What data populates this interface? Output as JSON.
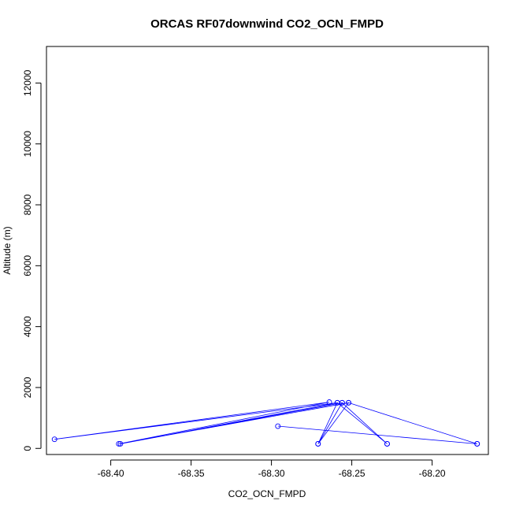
{
  "chart_data": {
    "type": "scatter",
    "title": "ORCAS RF07downwind CO2_OCN_FMPD",
    "xlabel": "CO2_OCN_FMPD",
    "ylabel": "Altitude (m)",
    "xlim": [
      -68.44,
      -68.165
    ],
    "ylim": [
      -200,
      13200
    ],
    "xticks": [
      -68.4,
      -68.35,
      -68.3,
      -68.25,
      -68.2
    ],
    "xtick_labels": [
      "-68.40",
      "-68.35",
      "-68.30",
      "-68.25",
      "-68.20"
    ],
    "yticks": [
      0,
      2000,
      4000,
      6000,
      8000,
      10000,
      12000
    ],
    "ytick_labels": [
      "0",
      "2000",
      "4000",
      "6000",
      "8000",
      "10000",
      "12000"
    ],
    "grid": false,
    "connected": true,
    "series": [
      {
        "color": "#0000ff",
        "points": [
          {
            "x": -68.271,
            "y": 150
          },
          {
            "x": -68.259,
            "y": 1500
          },
          {
            "x": -68.228,
            "y": 150
          },
          {
            "x": -68.256,
            "y": 1500
          },
          {
            "x": -68.271,
            "y": 150
          },
          {
            "x": -68.252,
            "y": 1500
          },
          {
            "x": -68.172,
            "y": 150
          },
          {
            "x": -68.296,
            "y": 730
          },
          {
            "x": -68.172,
            "y": 150
          },
          {
            "x": -68.252,
            "y": 1500
          },
          {
            "x": -68.395,
            "y": 150
          },
          {
            "x": -68.264,
            "y": 1520
          },
          {
            "x": -68.435,
            "y": 300
          },
          {
            "x": -68.259,
            "y": 1500
          },
          {
            "x": -68.394,
            "y": 150
          },
          {
            "x": -68.256,
            "y": 1500
          },
          {
            "x": -68.228,
            "y": 150
          }
        ]
      }
    ]
  }
}
